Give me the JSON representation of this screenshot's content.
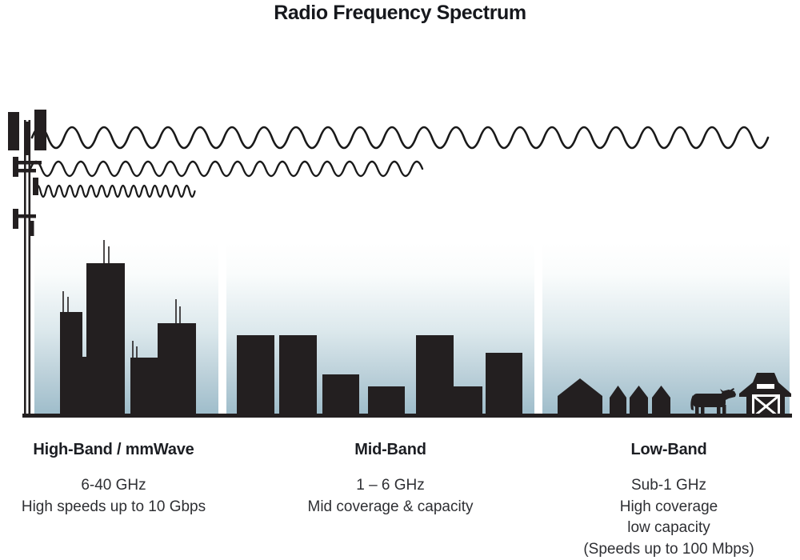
{
  "title": "Radio Frequency Spectrum",
  "bands": [
    {
      "name": "High-Band / mmWave",
      "frequency": "6-40 GHz",
      "lines": [
        "High speeds up to 10 Gbps"
      ]
    },
    {
      "name": "Mid-Band",
      "frequency": "1 – 6 GHz",
      "lines": [
        "Mid coverage & capacity"
      ]
    },
    {
      "name": "Low-Band",
      "frequency": "Sub-1 GHz",
      "lines": [
        "High coverage",
        "low capacity",
        "(Speeds up to 100 Mbps)"
      ]
    }
  ],
  "icons": [
    "cell-tower-icon",
    "low-band-wave-icon",
    "mid-band-wave-icon",
    "high-band-wave-icon",
    "skyscraper-icons",
    "building-icons",
    "house-icons",
    "cow-icon",
    "barn-icon"
  ],
  "colors": {
    "silhouette": "#231f20",
    "wave": "#191919",
    "sky_top": "#ffffff",
    "sky_bottom": "#9dbcca",
    "title_text": "#16181d",
    "body_text": "#2e2f33"
  }
}
